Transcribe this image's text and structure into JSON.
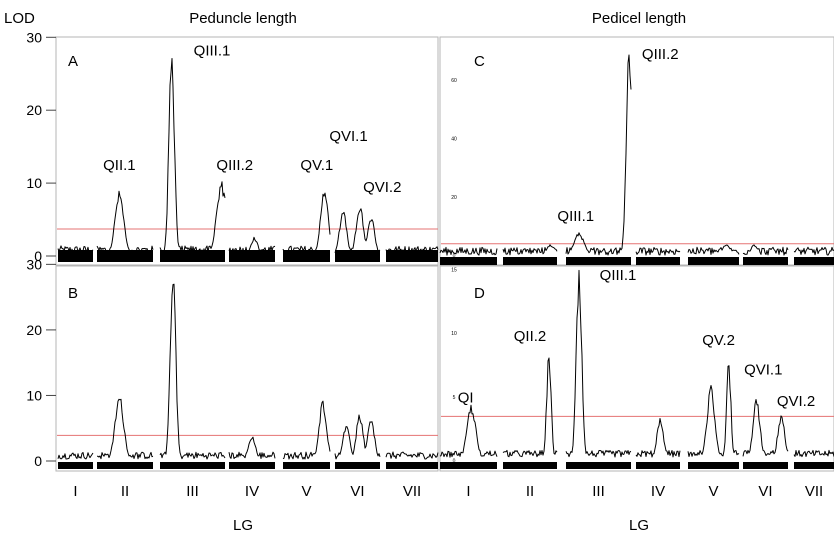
{
  "chart_data": [
    {
      "type": "line",
      "panel": "A",
      "title": "Peduncle length",
      "ylabel": "LOD",
      "ylim": [
        0,
        31
      ],
      "yticks": [
        0,
        10,
        20,
        30
      ],
      "threshold": 3.7,
      "linkage_groups": [
        "I",
        "II",
        "III",
        "IV",
        "V",
        "VI",
        "VII"
      ],
      "series": [
        {
          "peaks": [
            {
              "lg": 2,
              "pos": 0.4,
              "lod": 9.0
            },
            {
              "lg": 3,
              "pos": 0.18,
              "lod": 29.8
            },
            {
              "lg": 3,
              "pos": 0.95,
              "lod": 10.2
            },
            {
              "lg": 4,
              "pos": 0.55,
              "lod": 2.6
            },
            {
              "lg": 5,
              "pos": 0.88,
              "lod": 10.0
            },
            {
              "lg": 6,
              "pos": 0.18,
              "lod": 6.5
            },
            {
              "lg": 6,
              "pos": 0.55,
              "lod": 7.3
            },
            {
              "lg": 6,
              "pos": 0.8,
              "lod": 5.8
            }
          ]
        }
      ],
      "annotations": [
        {
          "text": "QII.1",
          "lg": 2,
          "pos": 0.4,
          "lod": 11.8
        },
        {
          "text": "QIII.1",
          "lg": 3,
          "pos": 0.8,
          "lod": 27.5
        },
        {
          "text": "QIII.2",
          "lg": 3,
          "pos": 1.15,
          "lod": 11.8
        },
        {
          "text": "QV.1",
          "lg": 5,
          "pos": 0.72,
          "lod": 11.8
        },
        {
          "text": "QVI.1",
          "lg": 6,
          "pos": 0.3,
          "lod": 15.8
        },
        {
          "text": "QVI.2",
          "lg": 6,
          "pos": 1.05,
          "lod": 8.8
        }
      ]
    },
    {
      "type": "line",
      "panel": "B",
      "ylabel": "",
      "ylim": [
        0,
        31
      ],
      "yticks": [
        0,
        10,
        20,
        30
      ],
      "threshold": 3.9,
      "linkage_groups": [
        "I",
        "II",
        "III",
        "IV",
        "V",
        "VI",
        "VII"
      ],
      "xlabel": "LG",
      "series": [
        {
          "peaks": [
            {
              "lg": 2,
              "pos": 0.4,
              "lod": 10.2
            },
            {
              "lg": 3,
              "pos": 0.2,
              "lod": 31.5
            },
            {
              "lg": 4,
              "pos": 0.5,
              "lod": 3.8
            },
            {
              "lg": 5,
              "pos": 0.85,
              "lod": 9.5
            },
            {
              "lg": 6,
              "pos": 0.25,
              "lod": 5.5
            },
            {
              "lg": 6,
              "pos": 0.55,
              "lod": 7.4
            },
            {
              "lg": 6,
              "pos": 0.8,
              "lod": 6.5
            }
          ]
        }
      ],
      "annotations": []
    },
    {
      "type": "line",
      "panel": "C",
      "title": "Pedicel length",
      "ylim": [
        0,
        77
      ],
      "yticks": [
        0,
        20,
        40,
        60
      ],
      "threshold": 4.2,
      "linkage_groups": [
        "I",
        "II",
        "III",
        "IV",
        "V",
        "VI",
        "VII"
      ],
      "series": [
        {
          "peaks": [
            {
              "lg": 2,
              "pos": 0.88,
              "lod": 4.0
            },
            {
              "lg": 3,
              "pos": 0.2,
              "lod": 8.0
            },
            {
              "lg": 3,
              "pos": 0.97,
              "lod": 76.0
            },
            {
              "lg": 5,
              "pos": 0.75,
              "lod": 4.0
            },
            {
              "lg": 6,
              "pos": 0.25,
              "lod": 4.0
            }
          ]
        }
      ],
      "annotations": [
        {
          "text": "QIII.1",
          "lg": 3,
          "pos": 0.15,
          "lod": 12.0
        },
        {
          "text": "QIII.2",
          "lg": 3,
          "pos": 1.45,
          "lod": 67.5
        }
      ]
    },
    {
      "type": "line",
      "panel": "D",
      "ylim": [
        0,
        15.3
      ],
      "yticks": [
        0,
        5,
        10,
        15
      ],
      "threshold": 3.5,
      "linkage_groups": [
        "I",
        "II",
        "III",
        "IV",
        "V",
        "VI",
        "VII"
      ],
      "xlabel": "LG",
      "series": [
        {
          "peaks": [
            {
              "lg": 1,
              "pos": 0.55,
              "lod": 4.5
            },
            {
              "lg": 2,
              "pos": 0.85,
              "lod": 8.5
            },
            {
              "lg": 3,
              "pos": 0.2,
              "lod": 15.0
            },
            {
              "lg": 4,
              "pos": 0.55,
              "lod": 3.4
            },
            {
              "lg": 5,
              "pos": 0.45,
              "lod": 6.0
            },
            {
              "lg": 5,
              "pos": 0.8,
              "lod": 8.0
            },
            {
              "lg": 6,
              "pos": 0.3,
              "lod": 5.0
            },
            {
              "lg": 6,
              "pos": 0.85,
              "lod": 3.8
            }
          ]
        }
      ],
      "annotations": [
        {
          "text": "QI",
          "lg": 1,
          "pos": 0.45,
          "lod": 4.6
        },
        {
          "text": "QII.2",
          "lg": 2,
          "pos": 0.5,
          "lod": 9.4
        },
        {
          "text": "QIII.1",
          "lg": 3,
          "pos": 0.8,
          "lod": 14.2
        },
        {
          "text": "QV.2",
          "lg": 5,
          "pos": 0.6,
          "lod": 9.1
        },
        {
          "text": "QVI.1",
          "lg": 6,
          "pos": 0.45,
          "lod": 6.8
        },
        {
          "text": "QVI.2",
          "lg": 7,
          "pos": 0.05,
          "lod": 4.3
        }
      ]
    }
  ],
  "colors": {
    "threshold": "#e57373",
    "curve": "#000000",
    "frame": "#b5b5b5"
  }
}
